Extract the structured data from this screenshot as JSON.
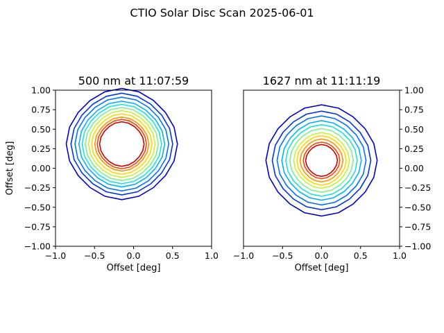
{
  "figure_title": "CTIO Solar Disc Scan 2025-06-01",
  "contour_colors": [
    "#0000cc",
    "#0033e6",
    "#0070ff",
    "#00b0ff",
    "#1ee0d8",
    "#78f08c",
    "#c8f032",
    "#ffd400",
    "#ff9100",
    "#ff4000",
    "#cc0000"
  ],
  "chart_data": [
    {
      "type": "contour",
      "title": "500 nm at 11:07:59",
      "xlabel": "Offset [deg]",
      "ylabel": "Offset [deg]",
      "xlim": [
        -1.0,
        1.0
      ],
      "ylim": [
        -1.0,
        1.0
      ],
      "xticks": [
        "-1.0",
        "-0.5",
        "0.0",
        "0.5",
        "1.0"
      ],
      "yticks": [
        "-1.00",
        "-0.75",
        "-0.50",
        "-0.25",
        "0.00",
        "0.25",
        "0.50",
        "0.75",
        "1.00"
      ],
      "y_axis_side": "left",
      "grid": false,
      "center": [
        -0.15,
        0.31
      ],
      "contour_radii": [
        0.7,
        0.64,
        0.59,
        0.54,
        0.5,
        0.46,
        0.42,
        0.38,
        0.34,
        0.31,
        0.28
      ]
    },
    {
      "type": "contour",
      "title": "1627 nm at 11:11:19",
      "xlabel": "Offset [deg]",
      "ylabel": "",
      "xlim": [
        -1.0,
        1.0
      ],
      "ylim": [
        -1.0,
        1.0
      ],
      "xticks": [
        "-1.0",
        "-0.5",
        "0.0",
        "0.5",
        "1.0"
      ],
      "yticks": [
        "-1.00",
        "-0.75",
        "-0.50",
        "-0.25",
        "0.00",
        "0.25",
        "0.50",
        "0.75",
        "1.00"
      ],
      "y_axis_side": "right",
      "grid": false,
      "center": [
        0.0,
        0.1
      ],
      "contour_radii": [
        0.7,
        0.62,
        0.56,
        0.5,
        0.45,
        0.4,
        0.35,
        0.31,
        0.27,
        0.23,
        0.2
      ]
    }
  ]
}
